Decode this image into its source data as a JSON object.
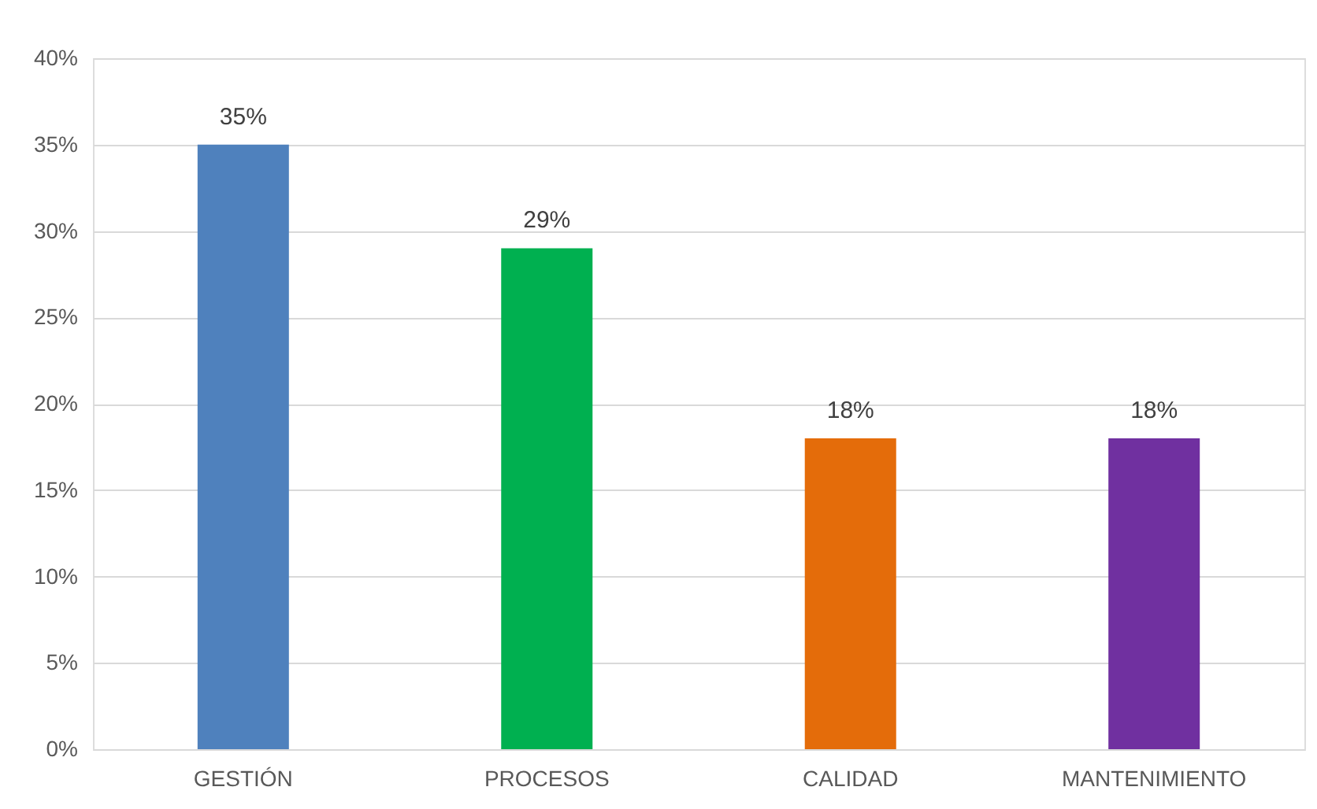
{
  "chart_data": {
    "type": "bar",
    "categories": [
      "GESTIÓN",
      "PROCESOS",
      "CALIDAD",
      "MANTENIMIENTO"
    ],
    "values": [
      35,
      29,
      18,
      18
    ],
    "colors": [
      "#4f81bd",
      "#00b050",
      "#e46c0a",
      "#7030a0"
    ],
    "value_labels": [
      "35%",
      "29%",
      "18%",
      "18%"
    ],
    "ylim": [
      0,
      40
    ],
    "yticks": [
      {
        "value": 0,
        "label": "0%"
      },
      {
        "value": 5,
        "label": "5%"
      },
      {
        "value": 10,
        "label": "10%"
      },
      {
        "value": 15,
        "label": "15%"
      },
      {
        "value": 20,
        "label": "20%"
      },
      {
        "value": 25,
        "label": "25%"
      },
      {
        "value": 30,
        "label": "30%"
      },
      {
        "value": 35,
        "label": "35%"
      },
      {
        "value": 40,
        "label": "40%"
      }
    ],
    "grid": "y"
  }
}
